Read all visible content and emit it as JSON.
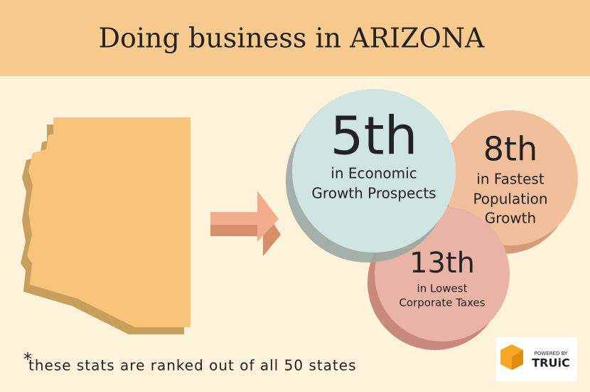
{
  "header": {
    "title": "Doing business in ARIZONA"
  },
  "stats": [
    {
      "rank": "5th",
      "lines": [
        "in Economic",
        "Growth Prospects"
      ]
    },
    {
      "rank": "8th",
      "lines": [
        "in Fastest",
        "Population",
        "Growth"
      ]
    },
    {
      "rank": "13th",
      "lines": [
        "in  Lowest",
        "Corporate Taxes"
      ]
    }
  ],
  "footnote": {
    "marker": "*",
    "text": "these stats are ranked out of all 50 states"
  },
  "logo": {
    "tagline": "POWERED BY",
    "brand": "TRUiC"
  }
}
